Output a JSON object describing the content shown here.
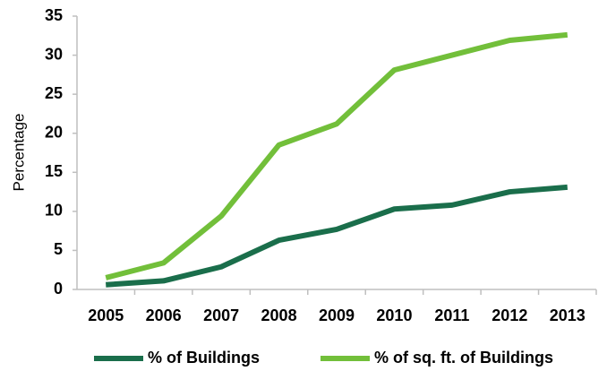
{
  "chart_data": {
    "type": "line",
    "y_label": "Percentage",
    "categories": [
      "2005",
      "2006",
      "2007",
      "2008",
      "2009",
      "2010",
      "2011",
      "2012",
      "2013"
    ],
    "series": [
      {
        "name": "% of Buildings",
        "color": "#1a6e4b",
        "values": [
          0.6,
          1.1,
          2.9,
          6.3,
          7.7,
          10.3,
          10.8,
          12.5,
          13.1
        ]
      },
      {
        "name": "% of sq. ft. of Buildings",
        "color": "#72bf3a",
        "values": [
          1.5,
          3.4,
          9.4,
          18.5,
          21.2,
          28.1,
          30.0,
          31.9,
          32.6
        ]
      }
    ],
    "ylim": [
      0,
      35
    ],
    "yticks": [
      0,
      5,
      10,
      15,
      20,
      25,
      30,
      35
    ],
    "grid": false,
    "legend": "bottom"
  }
}
